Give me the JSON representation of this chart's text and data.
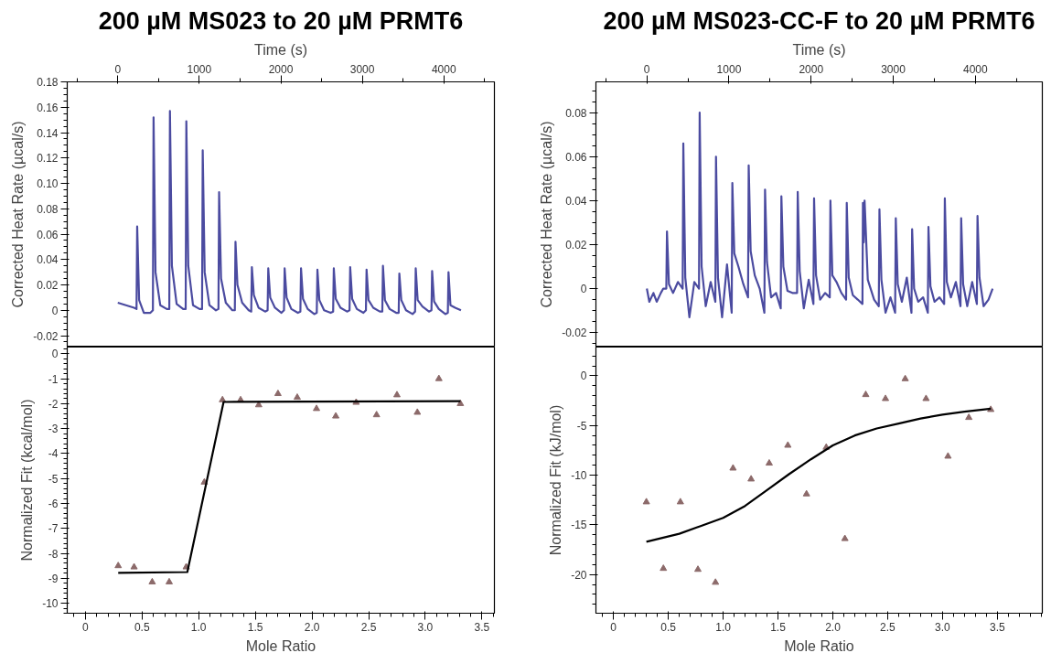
{
  "chart_data": [
    {
      "type": "line",
      "title": "200 µM MS023 to 20 µM PRMT6",
      "xlabel": "Time (s)",
      "ylabel": "Corrected Heat Rate (µcal/s)",
      "xlim": [
        -620,
        4620
      ],
      "xticks": [
        0,
        1000,
        2000,
        3000,
        4000
      ],
      "ylim": [
        -0.029,
        0.18
      ],
      "yticks": [
        0.18,
        0.16,
        0.14,
        0.12,
        {
          "value": 0.1,
          "label": "0.10"
        },
        0.08,
        0.06,
        0.04,
        0.02,
        0,
        -0.02
      ],
      "series": [
        {
          "color": "#4b4ba0",
          "x": [
            0,
            100,
            200,
            230,
            238,
            262,
            320,
            400,
            431,
            439,
            463,
            521,
            601,
            632,
            640,
            664,
            722,
            802,
            833,
            841,
            865,
            923,
            1003,
            1034,
            1042,
            1066,
            1124,
            1204,
            1235,
            1243,
            1267,
            1325,
            1405,
            1436,
            1444,
            1468,
            1526,
            1606,
            1637,
            1645,
            1669,
            1727,
            1807,
            1838,
            1846,
            1870,
            1928,
            2008,
            2039,
            2047,
            2071,
            2129,
            2209,
            2240,
            2248,
            2272,
            2330,
            2410,
            2441,
            2449,
            2473,
            2531,
            2611,
            2642,
            2650,
            2674,
            2732,
            2812,
            2843,
            2851,
            2875,
            2933,
            3013,
            3044,
            3052,
            3076,
            3134,
            3214,
            3245,
            3253,
            3277,
            3335,
            3415,
            3446,
            3454,
            3478,
            3536,
            3616,
            3647,
            3655,
            3679,
            3737,
            3817,
            3848,
            3856,
            3880,
            3938,
            4018,
            4049,
            4057,
            4081,
            4139,
            4210
          ],
          "values": [
            0.006,
            0.004,
            0.002,
            0.001,
            0.066,
            0.008,
            -0.002,
            -0.002,
            0.0,
            0.152,
            0.03,
            0.004,
            0.001,
            0.001,
            0.157,
            0.035,
            0.005,
            0.001,
            0.001,
            0.149,
            0.035,
            0.004,
            0.001,
            0.001,
            0.126,
            0.03,
            0.004,
            0.0,
            0.001,
            0.093,
            0.025,
            0.006,
            0.0,
            0.0,
            0.054,
            0.02,
            0.006,
            0.0,
            -0.001,
            0.034,
            0.012,
            0.002,
            -0.001,
            0.0,
            0.033,
            0.01,
            0.002,
            -0.002,
            0.0,
            0.033,
            0.01,
            0.001,
            -0.002,
            -0.001,
            0.033,
            0.009,
            0.001,
            -0.003,
            -0.002,
            0.032,
            0.008,
            0.0,
            -0.002,
            -0.001,
            0.033,
            0.009,
            0.002,
            -0.001,
            0.0,
            0.034,
            0.009,
            0.001,
            -0.002,
            0.0,
            0.032,
            0.008,
            0.002,
            -0.001,
            -0.001,
            0.035,
            0.008,
            0.001,
            -0.002,
            -0.002,
            0.029,
            0.008,
            0.0,
            -0.003,
            -0.001,
            0.033,
            0.008,
            0.003,
            -0.001,
            0.0,
            0.031,
            0.007,
            0.001,
            -0.003,
            -0.002,
            0.03,
            0.004,
            0.002,
            0.0
          ]
        }
      ]
    },
    {
      "type": "line",
      "title": "200 µM MS023-CC-F to 20 µM PRMT6",
      "xlabel": "Time (s)",
      "ylabel": "Corrected Heat Rate (µcal/s)",
      "xlim": [
        -620,
        4815
      ],
      "xticks": [
        0,
        1000,
        2000,
        3000,
        4000
      ],
      "ylim": [
        -0.0266,
        0.094
      ],
      "yticks": [
        0.08,
        0.06,
        0.04,
        0.02,
        0,
        -0.02
      ],
      "series": [
        {
          "color": "#4b4ba0",
          "x": [
            0,
            30,
            80,
            120,
            170,
            200,
            237,
            245,
            269,
            319,
            379,
            436,
            444,
            468,
            518,
            578,
            635,
            643,
            667,
            717,
            777,
            834,
            842,
            866,
            916,
            976,
            1033,
            1041,
            1065,
            1115,
            1175,
            1232,
            1240,
            1264,
            1314,
            1374,
            1431,
            1439,
            1463,
            1513,
            1573,
            1630,
            1638,
            1662,
            1712,
            1772,
            1829,
            1837,
            1861,
            1911,
            1971,
            2028,
            2036,
            2060,
            2110,
            2170,
            2227,
            2235,
            2259,
            2309,
            2369,
            2426,
            2434,
            2458,
            2508,
            2568,
            2625,
            2631,
            2641,
            2651,
            2690,
            2767,
            2824,
            2832,
            2856,
            2906,
            2966,
            3023,
            3031,
            3055,
            3105,
            3165,
            3222,
            3230,
            3254,
            3304,
            3364,
            3421,
            3429,
            3453,
            3503,
            3563,
            3620,
            3628,
            3652,
            3702,
            3762,
            3819,
            3827,
            3851,
            3901,
            3961,
            4018,
            4026,
            4050,
            4100,
            4160,
            4210
          ],
          "values": [
            0.0,
            -0.006,
            -0.002,
            -0.006,
            -0.002,
            0.0,
            0.0,
            0.026,
            0.002,
            -0.002,
            0.003,
            0.0,
            0.066,
            0.005,
            -0.013,
            0.003,
            0.0,
            0.08,
            0.01,
            -0.008,
            0.003,
            -0.006,
            0.06,
            0.005,
            -0.013,
            0.011,
            -0.011,
            0.048,
            0.016,
            0.01,
            0.002,
            -0.004,
            0.056,
            0.017,
            0.006,
            0.0,
            -0.011,
            0.045,
            0.012,
            -0.004,
            -0.002,
            -0.009,
            0.042,
            0.01,
            -0.001,
            -0.002,
            -0.002,
            0.044,
            0.008,
            -0.009,
            0.004,
            -0.007,
            0.041,
            0.006,
            -0.005,
            -0.002,
            -0.004,
            0.04,
            0.006,
            0.003,
            -0.002,
            -0.005,
            0.039,
            0.005,
            -0.003,
            -0.005,
            -0.007,
            0.039,
            0.021,
            0.04,
            0.004,
            -0.005,
            -0.008,
            0.036,
            0.004,
            -0.011,
            -0.004,
            -0.011,
            0.032,
            0.002,
            -0.006,
            0.005,
            -0.011,
            0.027,
            0.0,
            -0.006,
            -0.004,
            -0.011,
            0.028,
            0.001,
            -0.006,
            -0.004,
            -0.007,
            0.041,
            0.003,
            -0.004,
            0.003,
            -0.008,
            0.032,
            0.002,
            -0.008,
            0.003,
            -0.007,
            0.033,
            0.005,
            -0.008,
            -0.005,
            0.0
          ]
        }
      ]
    },
    {
      "type": "scatter",
      "xlabel": "Mole Ratio",
      "ylabel": "Normalized Fit (kcal/mol)",
      "xlim": [
        -0.16,
        3.61
      ],
      "xticks": [
        0,
        0.5,
        {
          "value": 1,
          "label": "1.0"
        },
        1.5,
        {
          "value": 2,
          "label": "2.0"
        },
        2.5,
        {
          "value": 3,
          "label": "3.0"
        },
        3.5
      ],
      "ylim": [
        -10.4,
        0.27
      ],
      "yticks": [
        0,
        -1,
        -2,
        -3,
        -4,
        -5,
        -6,
        -7,
        -8,
        -9,
        -10
      ],
      "series": [
        {
          "type": "scatter",
          "marker": "triangle",
          "color": "#8c6a6a",
          "x": [
            0.29,
            0.43,
            0.59,
            0.74,
            0.89,
            1.05,
            1.21,
            1.37,
            1.53,
            1.7,
            1.87,
            2.04,
            2.21,
            2.39,
            2.57,
            2.75,
            2.93,
            3.12,
            3.31
          ],
          "values": [
            -8.5,
            -8.55,
            -9.15,
            -9.15,
            -8.55,
            -5.15,
            -1.85,
            -1.85,
            -2.05,
            -1.6,
            -1.75,
            -2.2,
            -2.5,
            -1.95,
            -2.45,
            -1.65,
            -2.35,
            -1.0,
            -2.0
          ]
        },
        {
          "type": "line",
          "color": "#000000",
          "x": [
            0.29,
            0.9,
            1.22,
            3.31
          ],
          "values": [
            -8.78,
            -8.75,
            -1.93,
            -1.9
          ]
        }
      ]
    },
    {
      "type": "scatter",
      "xlabel": "Mole Ratio",
      "ylabel": "Normalized Fit (kJ/mol)",
      "xlim": [
        -0.16,
        3.91
      ],
      "xticks": [
        0,
        0.5,
        {
          "value": 1,
          "label": "1.0"
        },
        1.5,
        {
          "value": 2,
          "label": "2.0"
        },
        2.5,
        {
          "value": 3,
          "label": "3.0"
        },
        3.5
      ],
      "ylim": [
        -23.9,
        2.9
      ],
      "yticks": [
        0,
        -5,
        -10,
        -15,
        -20
      ],
      "series": [
        {
          "type": "scatter",
          "marker": "triangle",
          "color": "#8c6a6a",
          "x": [
            0.3,
            0.455,
            0.61,
            0.77,
            0.93,
            1.09,
            1.255,
            1.42,
            1.59,
            1.76,
            1.94,
            2.11,
            2.3,
            2.48,
            2.66,
            2.85,
            3.05,
            3.24,
            3.44
          ],
          "values": [
            -12.7,
            -19.4,
            -12.7,
            -19.5,
            -20.8,
            -9.3,
            -10.4,
            -8.8,
            -7.0,
            -11.9,
            -7.2,
            -16.4,
            -1.9,
            -2.3,
            -0.3,
            -2.3,
            -8.1,
            -4.2,
            -3.4
          ]
        },
        {
          "type": "line",
          "color": "#000000",
          "x": [
            0.3,
            0.6,
            0.8,
            1.0,
            1.2,
            1.4,
            1.6,
            1.8,
            2.0,
            2.2,
            2.4,
            2.6,
            2.8,
            3.0,
            3.2,
            3.44
          ],
          "values": [
            -16.7,
            -15.9,
            -15.1,
            -14.3,
            -13.1,
            -11.5,
            -9.9,
            -8.4,
            -7.0,
            -6.0,
            -5.3,
            -4.8,
            -4.3,
            -3.9,
            -3.6,
            -3.3
          ]
        }
      ]
    }
  ]
}
